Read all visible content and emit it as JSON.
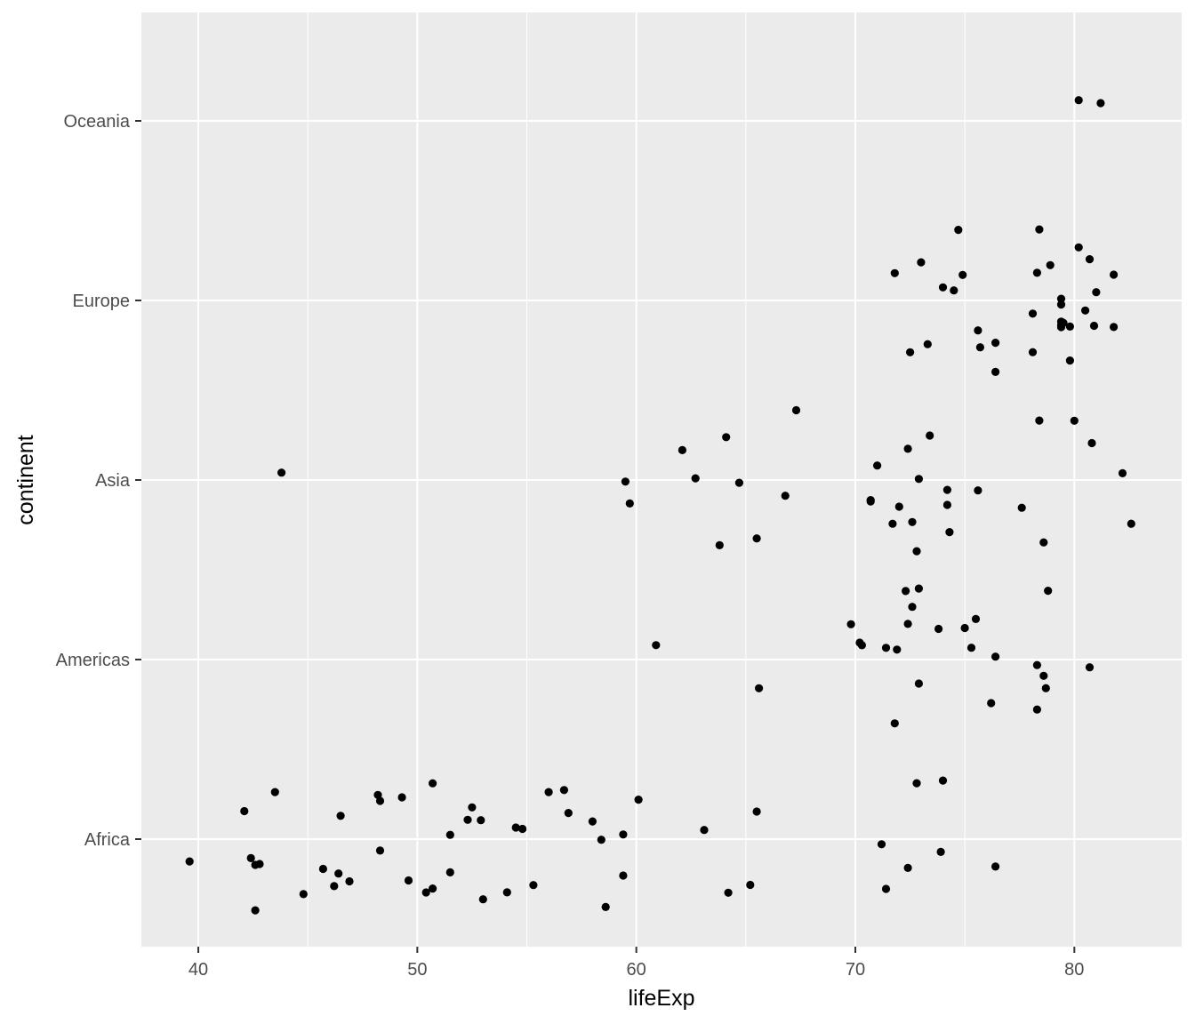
{
  "chart_data": {
    "type": "scatter",
    "xlabel": "lifeExp",
    "ylabel": "continent",
    "xlim": [
      37.4,
      84.9
    ],
    "x_ticks": [
      40,
      50,
      60,
      70,
      80
    ],
    "x_tick_labels": [
      "40",
      "50",
      "60",
      "70",
      "80"
    ],
    "categories": [
      "Africa",
      "Americas",
      "Asia",
      "Europe",
      "Oceania"
    ],
    "jitter": true,
    "colors": {
      "panel": "#ebebeb",
      "grid": "#ffffff",
      "point": "#000000",
      "text": "#4d4d4d"
    },
    "series": [
      {
        "category": "Africa",
        "x": [
          39.6,
          42.1,
          42.4,
          42.6,
          42.6,
          42.8,
          43.5,
          44.8,
          45.7,
          46.2,
          46.4,
          46.5,
          46.9,
          48.2,
          48.3,
          48.3,
          49.3,
          49.6,
          50.4,
          50.7,
          50.7,
          51.5,
          51.5,
          52.3,
          52.5,
          52.9,
          53.0,
          54.1,
          54.5,
          54.8,
          55.3,
          56.0,
          56.7,
          56.9,
          58.0,
          58.4,
          58.6,
          59.4,
          59.4,
          60.1,
          63.1,
          64.2,
          65.2,
          65.5,
          71.2,
          71.4,
          72.4,
          72.8,
          73.9,
          74.0,
          76.4
        ]
      },
      {
        "category": "Americas",
        "x": [
          60.9,
          65.6,
          69.8,
          70.2,
          70.3,
          71.4,
          71.8,
          71.9,
          72.3,
          72.4,
          72.6,
          72.9,
          72.9,
          73.8,
          75.0,
          75.3,
          75.5,
          76.2,
          76.4,
          78.3,
          78.3,
          78.6,
          78.7,
          78.8,
          80.7
        ]
      },
      {
        "category": "Asia",
        "x": [
          43.8,
          59.5,
          59.7,
          62.1,
          62.7,
          63.8,
          64.1,
          64.7,
          65.5,
          66.8,
          67.3,
          70.7,
          70.7,
          71.0,
          71.7,
          72.0,
          72.4,
          72.6,
          72.8,
          72.9,
          73.4,
          74.2,
          74.2,
          74.3,
          75.6,
          77.6,
          78.4,
          78.6,
          80.0,
          80.8,
          82.2,
          82.6
        ]
      },
      {
        "category": "Europe",
        "x": [
          71.8,
          72.5,
          73.0,
          73.3,
          74.0,
          74.5,
          74.7,
          74.9,
          75.6,
          75.7,
          76.4,
          76.4,
          78.1,
          78.1,
          78.3,
          78.4,
          78.9,
          79.4,
          79.4,
          79.4,
          79.4,
          79.4,
          79.5,
          79.8,
          79.8,
          80.2,
          80.5,
          80.7,
          80.9,
          81.0,
          81.8,
          81.8
        ]
      },
      {
        "category": "Oceania",
        "x": [
          80.2,
          81.2
        ]
      }
    ]
  }
}
